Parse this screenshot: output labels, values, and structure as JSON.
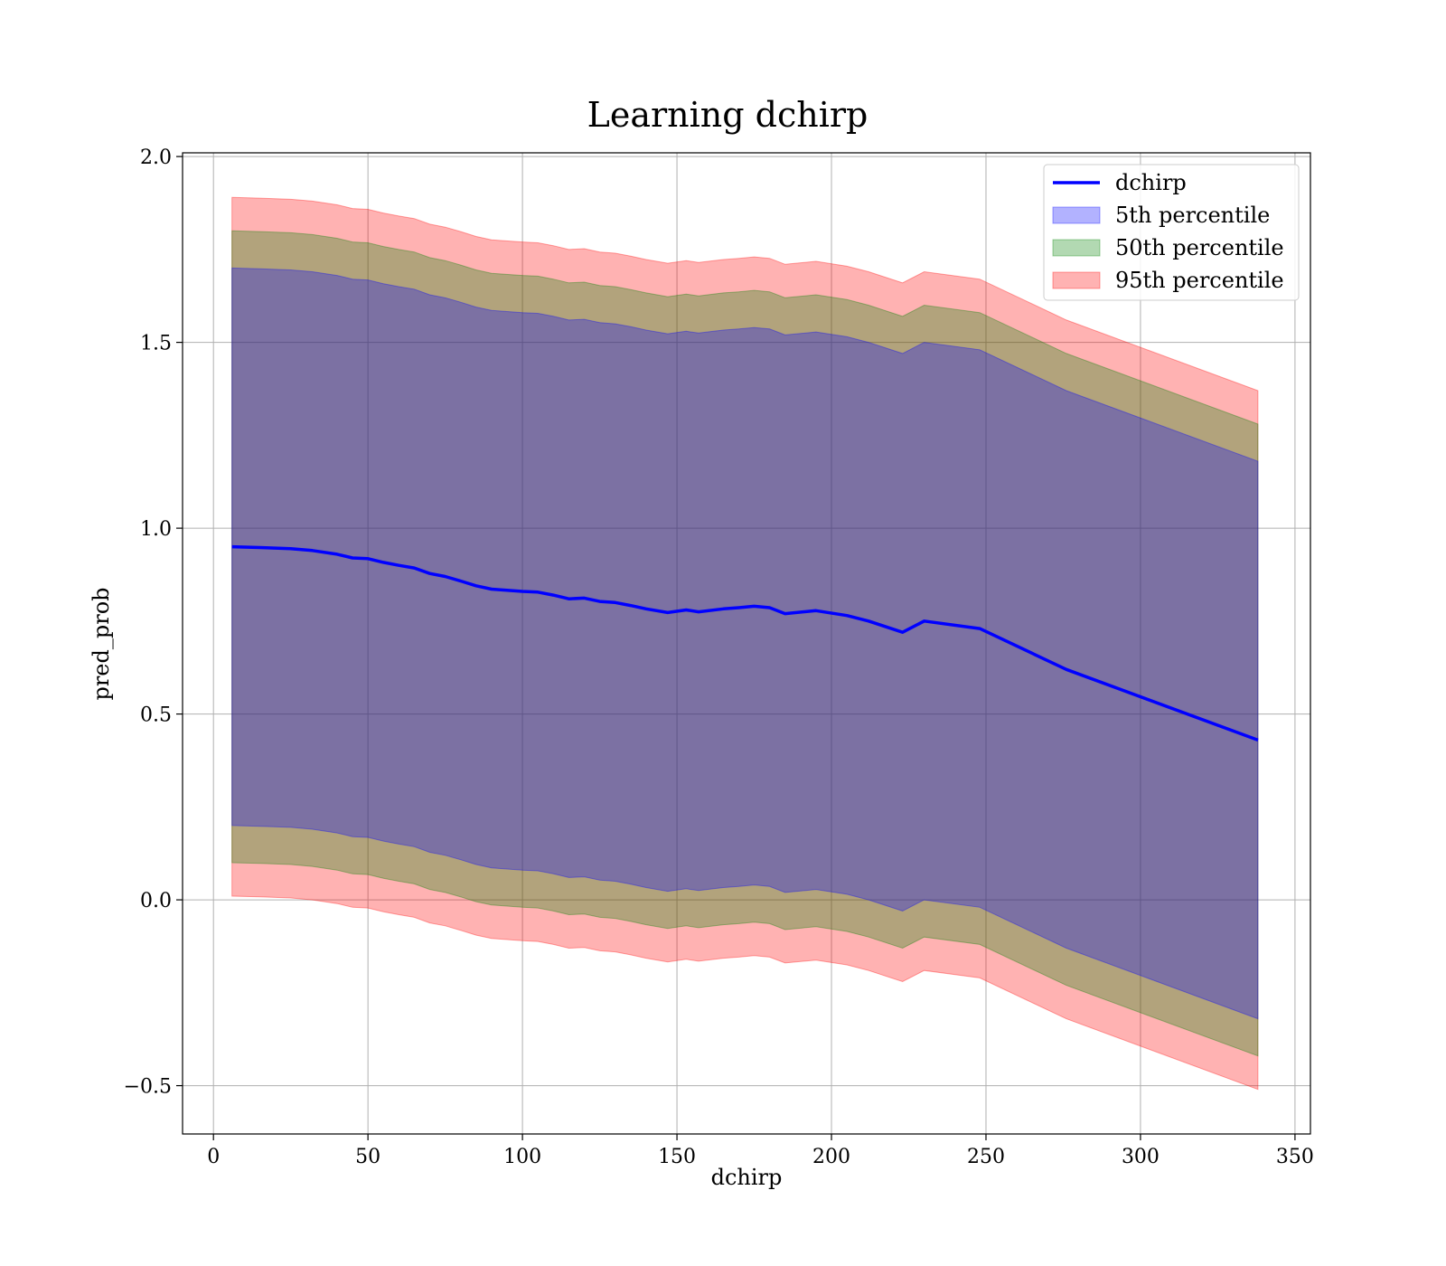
{
  "chart_data": {
    "type": "area",
    "title": "Learning dchirp",
    "xlabel": "dchirp",
    "ylabel": "pred_prob",
    "xlim": [
      -10,
      355
    ],
    "ylim": [
      -0.63,
      2.01
    ],
    "xticks": [
      0,
      50,
      100,
      150,
      200,
      250,
      300,
      350
    ],
    "xtick_labels": [
      "0",
      "50",
      "100",
      "150",
      "200",
      "250",
      "300",
      "350"
    ],
    "yticks": [
      -0.5,
      0.0,
      0.5,
      1.0,
      1.5,
      2.0
    ],
    "ytick_labels": [
      "−0.5",
      "0.0",
      "0.5",
      "1.0",
      "1.5",
      "2.0"
    ],
    "grid": true,
    "legend_position": "top-right",
    "x": [
      6,
      15,
      25,
      32,
      40,
      45,
      50,
      55,
      60,
      65,
      70,
      75,
      80,
      85,
      90,
      100,
      105,
      110,
      115,
      120,
      125,
      130,
      135,
      140,
      147,
      153,
      157,
      165,
      170,
      175,
      180,
      185,
      195,
      205,
      212,
      223,
      230,
      248,
      276,
      338
    ],
    "series": [
      {
        "name": "dchirp",
        "kind": "line",
        "color": "#0000ff",
        "values": [
          0.95,
          0.948,
          0.945,
          0.94,
          0.93,
          0.92,
          0.918,
          0.908,
          0.9,
          0.893,
          0.878,
          0.87,
          0.858,
          0.845,
          0.836,
          0.83,
          0.828,
          0.82,
          0.81,
          0.812,
          0.803,
          0.8,
          0.792,
          0.783,
          0.773,
          0.78,
          0.775,
          0.783,
          0.786,
          0.79,
          0.786,
          0.77,
          0.778,
          0.765,
          0.75,
          0.72,
          0.75,
          0.73,
          0.62,
          0.43
        ]
      },
      {
        "name": "5th percentile",
        "kind": "band",
        "color": "#0000ff",
        "offset": 0.75
      },
      {
        "name": "50th percentile",
        "kind": "band",
        "color": "#008000",
        "offset": 0.85
      },
      {
        "name": "95th percentile",
        "kind": "band",
        "color": "#ff0000",
        "offset": 0.94
      }
    ]
  }
}
